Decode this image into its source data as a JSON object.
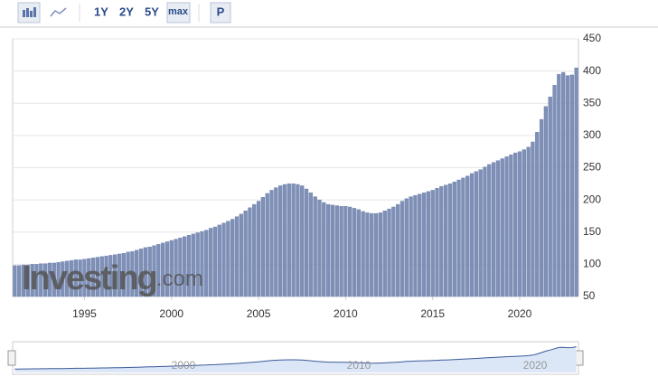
{
  "toolbar": {
    "ranges": [
      "1Y",
      "2Y",
      "5Y",
      "max"
    ],
    "button": "P"
  },
  "watermark": {
    "brand": "Investing",
    "suffix": ".com"
  },
  "navigator": {
    "labels": [
      "2000",
      "2010",
      "2020"
    ]
  },
  "chart_data": {
    "type": "bar",
    "color": "#7f90b8",
    "grid": true,
    "y_axis_side": "right",
    "ylim": [
      50,
      450
    ],
    "yticks": [
      50,
      100,
      150,
      200,
      250,
      300,
      350,
      400,
      450
    ],
    "categories": [
      null,
      null,
      null,
      null,
      null,
      null,
      null,
      null,
      null,
      null,
      null,
      null,
      null,
      null,
      null,
      null,
      "1995",
      null,
      null,
      null,
      null,
      null,
      null,
      null,
      null,
      null,
      null,
      null,
      null,
      null,
      null,
      null,
      null,
      null,
      null,
      null,
      "2000",
      null,
      null,
      null,
      null,
      null,
      null,
      null,
      null,
      null,
      null,
      null,
      null,
      null,
      null,
      null,
      null,
      null,
      null,
      null,
      "2005",
      null,
      null,
      null,
      null,
      null,
      null,
      null,
      null,
      null,
      null,
      null,
      null,
      null,
      null,
      null,
      null,
      null,
      null,
      null,
      "2010",
      null,
      null,
      null,
      null,
      null,
      null,
      null,
      null,
      null,
      null,
      null,
      null,
      null,
      null,
      null,
      null,
      null,
      null,
      null,
      "2015",
      null,
      null,
      null,
      null,
      null,
      null,
      null,
      null,
      null,
      null,
      null,
      null,
      null,
      null,
      null,
      null,
      null,
      null,
      null,
      "2020",
      null,
      null,
      null,
      null,
      null,
      null,
      null,
      null,
      null,
      null,
      null,
      null,
      null
    ],
    "values": [
      98,
      98,
      99,
      99,
      100,
      100,
      101,
      101,
      102,
      102,
      103,
      104,
      105,
      106,
      107,
      107,
      108,
      109,
      110,
      111,
      112,
      113,
      114,
      115,
      116,
      117,
      119,
      120,
      122,
      124,
      126,
      127,
      129,
      131,
      133,
      135,
      137,
      139,
      141,
      143,
      145,
      147,
      149,
      151,
      153,
      156,
      158,
      161,
      164,
      167,
      170,
      174,
      178,
      183,
      188,
      193,
      198,
      204,
      210,
      215,
      219,
      222,
      224,
      225,
      225,
      224,
      222,
      217,
      211,
      205,
      200,
      196,
      193,
      192,
      191,
      190,
      190,
      189,
      187,
      185,
      182,
      180,
      179,
      179,
      180,
      183,
      186,
      189,
      193,
      198,
      202,
      205,
      207,
      209,
      211,
      213,
      215,
      218,
      221,
      223,
      225,
      228,
      231,
      234,
      237,
      241,
      244,
      247,
      251,
      255,
      258,
      261,
      264,
      267,
      270,
      273,
      275,
      278,
      282,
      290,
      305,
      325,
      345,
      360,
      378,
      395,
      398,
      393,
      394,
      405
    ]
  }
}
